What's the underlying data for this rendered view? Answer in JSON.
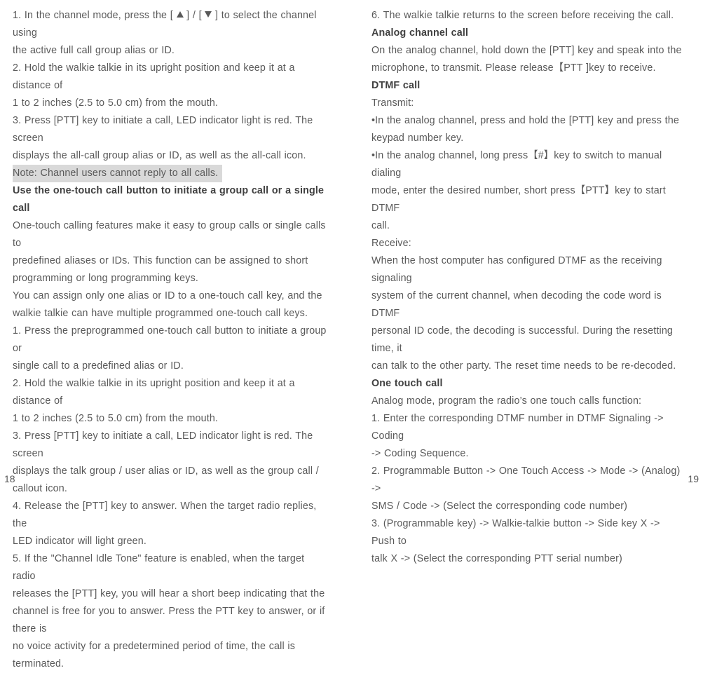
{
  "left": {
    "l1a": "1. In the channel mode, press the [",
    "l1b": "] / [",
    "l1c": "] to select the channel using",
    "l2": "the active full call group alias or ID.",
    "l3": "2. Hold the walkie talkie in its upright position and keep it at a distance of",
    "l4": "1 to 2 inches (2.5 to 5.0 cm) from the mouth.",
    "l5": "3. Press [PTT] key to initiate a call, LED indicator light is red. The screen",
    "l6": "displays the all-call group alias or ID, as well as the all-call icon.",
    "note": "Note: Channel users cannot reply to all calls.",
    "h1": "Use the one-touch call button to initiate a group call or a single call",
    "l8": "One-touch calling features make it easy to group calls or single calls to",
    "l9": "predefined aliases or IDs. This function can be assigned to short",
    "l10": "programming or long programming keys.",
    "l11": "You can assign only one alias or ID to a one-touch call key, and the",
    "l12": "walkie talkie can have multiple programmed one-touch call keys.",
    "l13": "1. Press the preprogrammed one-touch call button to initiate a group or",
    "l14": "single call to a predefined alias or ID.",
    "l15": "2. Hold the walkie talkie in its upright position and keep it at a distance of",
    "l16": "1 to 2 inches (2.5 to 5.0 cm) from the mouth.",
    "l17": "3. Press [PTT] key to initiate a call, LED indicator light is red. The screen",
    "l18": "displays the talk group / user alias or ID, as well as the group call /",
    "l19": "callout icon.",
    "l20": "4. Release the [PTT] key to answer. When the target radio replies, the",
    "l21": "LED indicator will light green.",
    "l22": "5. If the \"Channel Idle Tone\" feature is enabled, when the target radio",
    "l23": "releases the [PTT] key, you will hear a short beep indicating that the",
    "l24": "channel is free for you to answer. Press the PTT key to answer, or if there is",
    "l25": "no voice activity for a predetermined period of time, the call is terminated.",
    "pagenum": "18"
  },
  "right": {
    "r1": "6. The walkie talkie returns to the screen before receiving the call.",
    "h2": "Analog channel call",
    "r2": "On the analog channel, hold down the [PTT] key and speak into the",
    "r3": "microphone, to transmit. Please release【PTT ]key to receive.",
    "h3": "DTMF call",
    "r4": "Transmit:",
    "r5": "•In the analog channel, press and hold the [PTT] key and press the",
    "r6": "keypad number key.",
    "r7": "•In the analog channel, long press【#】key to switch to manual dialing",
    "r8": "mode, enter the desired number, short press【PTT】key to start DTMF",
    "r9": "call.",
    "r10": "Receive:",
    "r11": "When the host computer has configured DTMF as the receiving signaling",
    "r12": "system of the current channel, when decoding the code word is DTMF",
    "r13": "personal ID code, the decoding is successful. During the resetting time, it",
    "r14": "can talk to the other party. The reset time needs to be re-decoded.",
    "h4": "One touch call",
    "r15": "Analog mode, program the radio’s one touch calls function:",
    "r16": "1. Enter the corresponding DTMF number in DTMF Signaling -> Coding",
    "r17": "-> Coding Sequence.",
    "r18": "2. Programmable Button -> One Touch Access -> Mode -> (Analog) ->",
    "r19": "SMS / Code -> (Select the corresponding code number)",
    "r20": "3. (Programmable key) -> Walkie-talkie button -> Side key X -> Push to",
    "r21": "talk X -> (Select the corresponding PTT serial number)",
    "pagenum": "19"
  }
}
